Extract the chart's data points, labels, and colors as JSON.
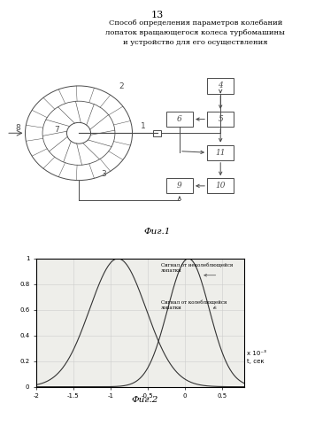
{
  "page_number": "13",
  "title_line1": "Способ определения параметров колебаний",
  "title_line2": "лопаток вращающегося колеса турбомашины",
  "title_line3": "и устройство для его осуществления",
  "fig1_label": "Фиг.1",
  "fig2_label": "Фиг.2",
  "bg_color": "#ffffff",
  "text_color": "#000000",
  "diagram_color": "#4a4a4a",
  "plot_bg": "#eeeeea",
  "curve1_color": "#333333",
  "curve2_color": "#333333",
  "legend1": "Сигнал от неколеблющейся\nлопатки",
  "legend2": "Сигнал от колеблющейся\nлопатки",
  "xlabel": "t, сек",
  "xscale_label": "x 10⁻³",
  "yticks": [
    0,
    0.2,
    0.4,
    0.6,
    0.8,
    1
  ],
  "xtick_labels": [
    "-2",
    "-1.5",
    "-1",
    "-0.5",
    "0",
    "0.5"
  ],
  "xtick_vals": [
    -2.0,
    -1.5,
    -1.0,
    -0.5,
    0.0,
    0.5
  ],
  "xlim": [
    -2.0,
    0.8
  ],
  "ylim": [
    0,
    1.0
  ],
  "gauss1_mean": -0.9,
  "gauss1_std": 0.38,
  "gauss2_mean": 0.05,
  "gauss2_std": 0.28
}
